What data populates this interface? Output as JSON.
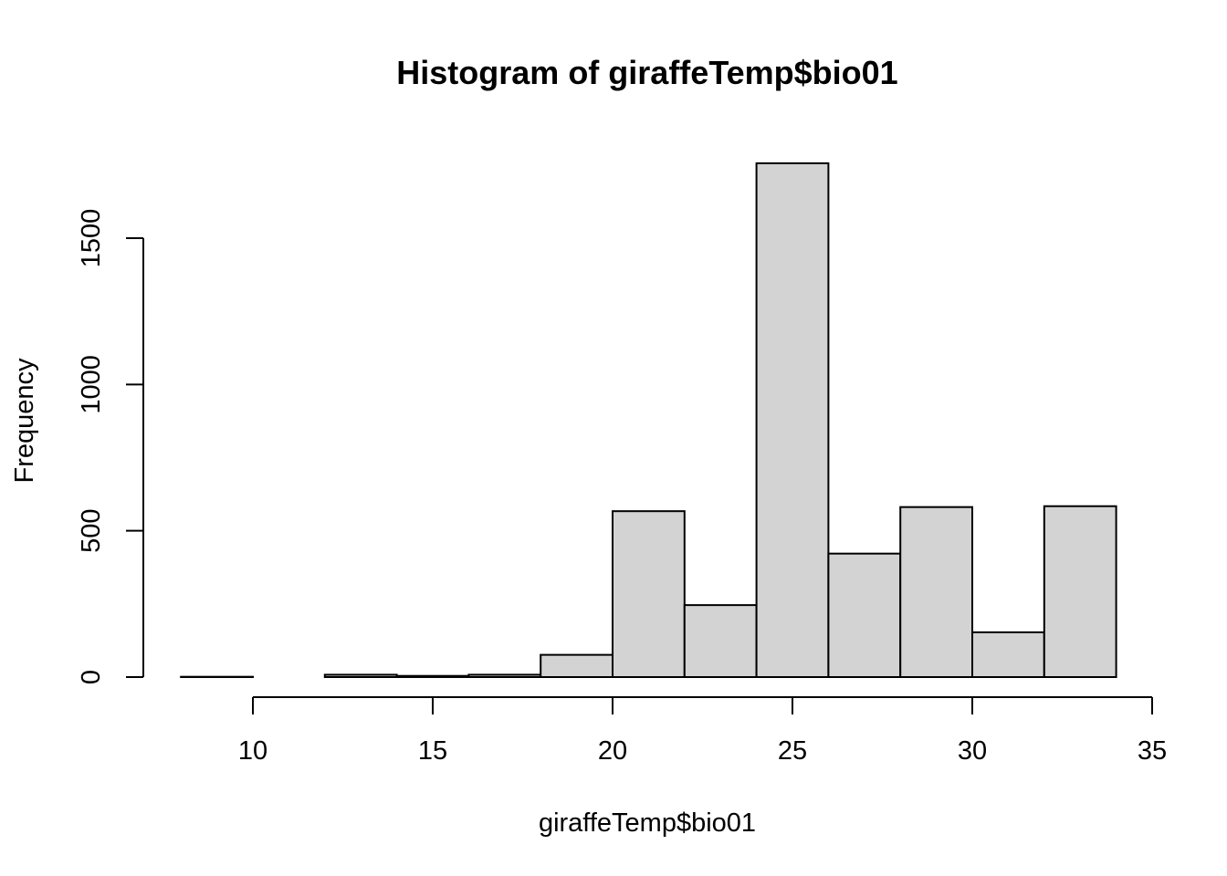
{
  "chart_data": {
    "type": "bar",
    "title": "Histogram of giraffeTemp$bio01",
    "xlabel": "giraffeTemp$bio01",
    "ylabel": "Frequency",
    "xlim": [
      10,
      35
    ],
    "ylim": [
      0,
      1750
    ],
    "x_ticks": [
      10,
      15,
      20,
      25,
      30,
      35
    ],
    "y_ticks": [
      0,
      500,
      1000,
      1500
    ],
    "bins": [
      {
        "from": 8,
        "to": 10,
        "count": 1
      },
      {
        "from": 10,
        "to": 12,
        "count": 0
      },
      {
        "from": 12,
        "to": 14,
        "count": 8
      },
      {
        "from": 14,
        "to": 16,
        "count": 4
      },
      {
        "from": 16,
        "to": 18,
        "count": 8
      },
      {
        "from": 18,
        "to": 20,
        "count": 76
      },
      {
        "from": 20,
        "to": 22,
        "count": 567
      },
      {
        "from": 22,
        "to": 24,
        "count": 246
      },
      {
        "from": 24,
        "to": 26,
        "count": 1756
      },
      {
        "from": 26,
        "to": 28,
        "count": 422
      },
      {
        "from": 28,
        "to": 30,
        "count": 581
      },
      {
        "from": 30,
        "to": 32,
        "count": 153
      },
      {
        "from": 32,
        "to": 34,
        "count": 584
      }
    ],
    "colors": {
      "bar_fill": "#d3d3d3",
      "bar_stroke": "#000000"
    },
    "grid": false,
    "legend": "none"
  }
}
